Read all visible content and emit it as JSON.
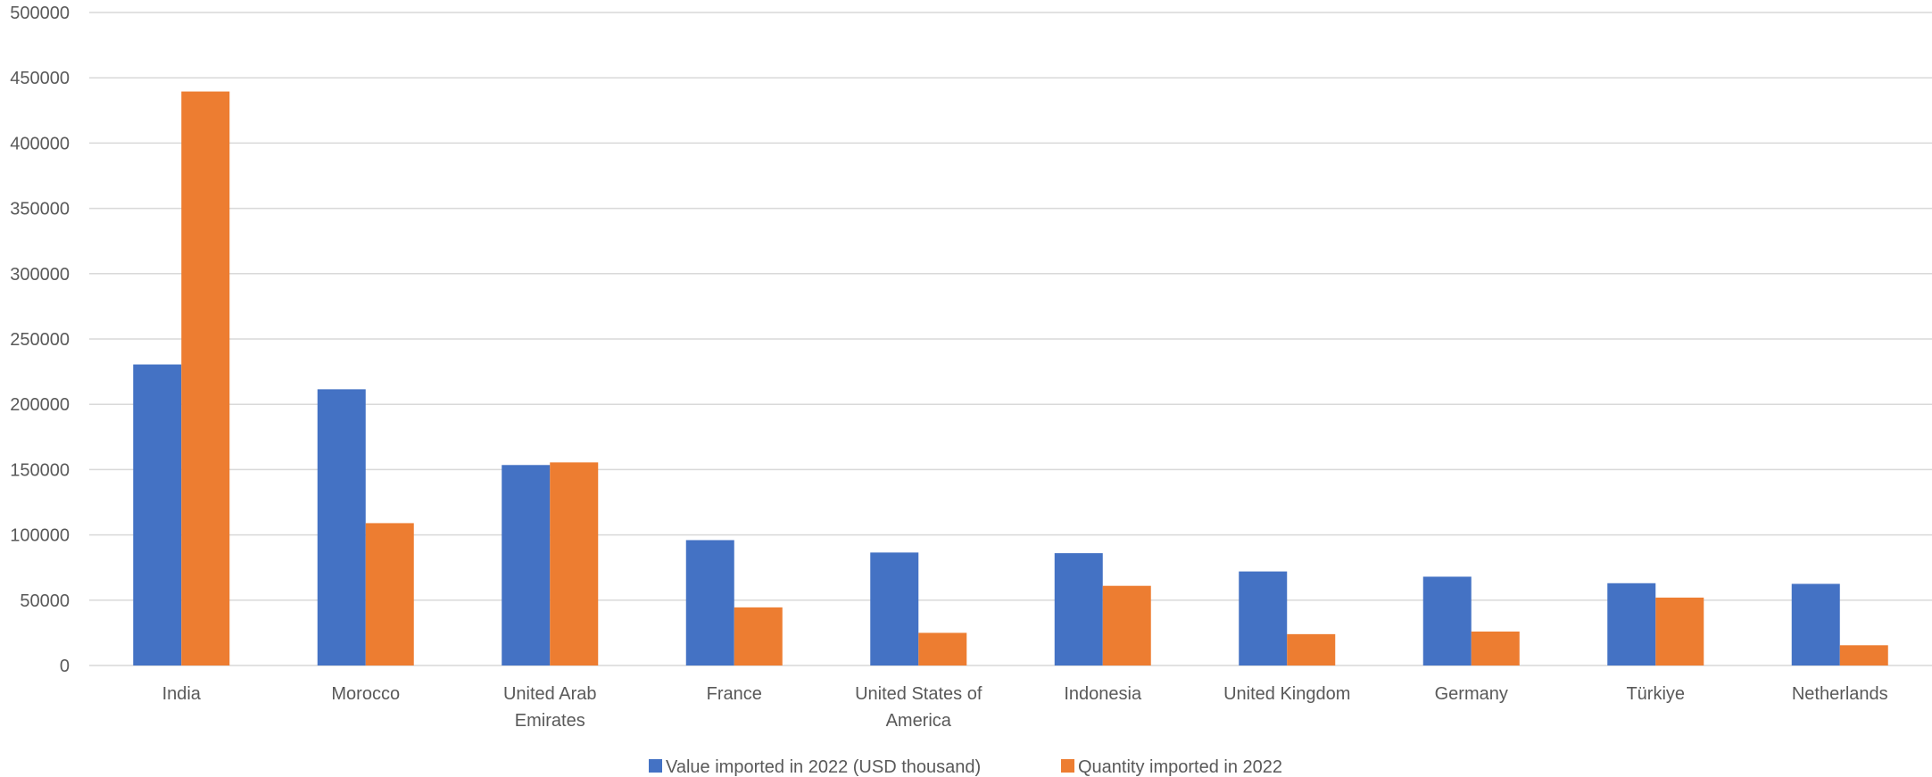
{
  "chart_data": {
    "type": "bar",
    "title": "",
    "xlabel": "",
    "ylabel": "",
    "ylim": [
      0,
      500000
    ],
    "yticks": [
      0,
      50000,
      100000,
      150000,
      200000,
      250000,
      300000,
      350000,
      400000,
      450000,
      500000
    ],
    "grid": true,
    "legend_position": "bottom",
    "categories": [
      [
        "India"
      ],
      [
        "Morocco"
      ],
      [
        "United Arab",
        "Emirates"
      ],
      [
        "France"
      ],
      [
        "United States of",
        "America"
      ],
      [
        "Indonesia"
      ],
      [
        "United Kingdom"
      ],
      [
        "Germany"
      ],
      [
        "Türkiye"
      ],
      [
        "Netherlands"
      ]
    ],
    "series": [
      {
        "name": "Value imported in 2022 (USD thousand)",
        "color": "#4472C4",
        "values": [
          230500,
          211500,
          153500,
          96000,
          86500,
          86000,
          72000,
          68000,
          63000,
          62500
        ]
      },
      {
        "name": "Quantity imported in 2022",
        "color": "#ED7D31",
        "values": [
          439500,
          109000,
          155500,
          44500,
          25000,
          61000,
          24000,
          26000,
          52000,
          15500
        ]
      }
    ]
  }
}
